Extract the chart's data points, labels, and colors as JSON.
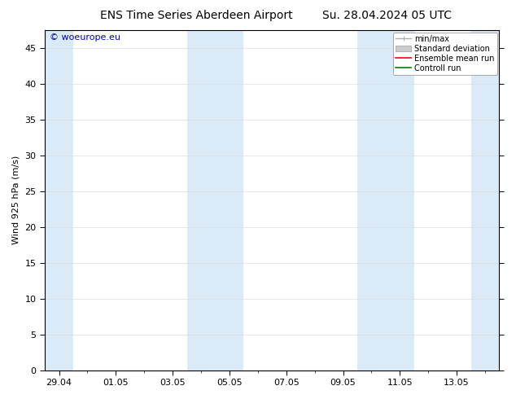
{
  "title_left": "ENS Time Series Aberdeen Airport",
  "title_right": "Su. 28.04.2024 05 UTC",
  "ylabel": "Wind 925 hPa (m/s)",
  "watermark": "© woeurope.eu",
  "x_tick_labels": [
    "29.04",
    "01.05",
    "03.05",
    "05.05",
    "07.05",
    "09.05",
    "11.05",
    "13.05"
  ],
  "x_tick_positions": [
    0,
    2,
    4,
    6,
    8,
    10,
    12,
    14
  ],
  "ylim": [
    0,
    47.5
  ],
  "yticks": [
    0,
    5,
    10,
    15,
    20,
    25,
    30,
    35,
    40,
    45
  ],
  "xlim": [
    -0.5,
    15.5
  ],
  "background_color": "#ffffff",
  "shade_color": "#daeaf7",
  "legend_items": [
    {
      "label": "min/max",
      "color": "#b0b0b0"
    },
    {
      "label": "Standard deviation",
      "color": "#cccccc"
    },
    {
      "label": "Ensemble mean run",
      "color": "#ff0000"
    },
    {
      "label": "Controll run",
      "color": "#008000"
    }
  ],
  "title_fontsize": 10,
  "label_fontsize": 8,
  "tick_fontsize": 8,
  "legend_fontsize": 7,
  "watermark_fontsize": 8,
  "shaded_bands": [
    [
      -0.5,
      0.5
    ],
    [
      4.5,
      5.5
    ],
    [
      5.5,
      6.5
    ],
    [
      10.5,
      11.5
    ],
    [
      11.5,
      12.5
    ],
    [
      14.5,
      15.5
    ]
  ],
  "watermark_color": "#0000cc"
}
